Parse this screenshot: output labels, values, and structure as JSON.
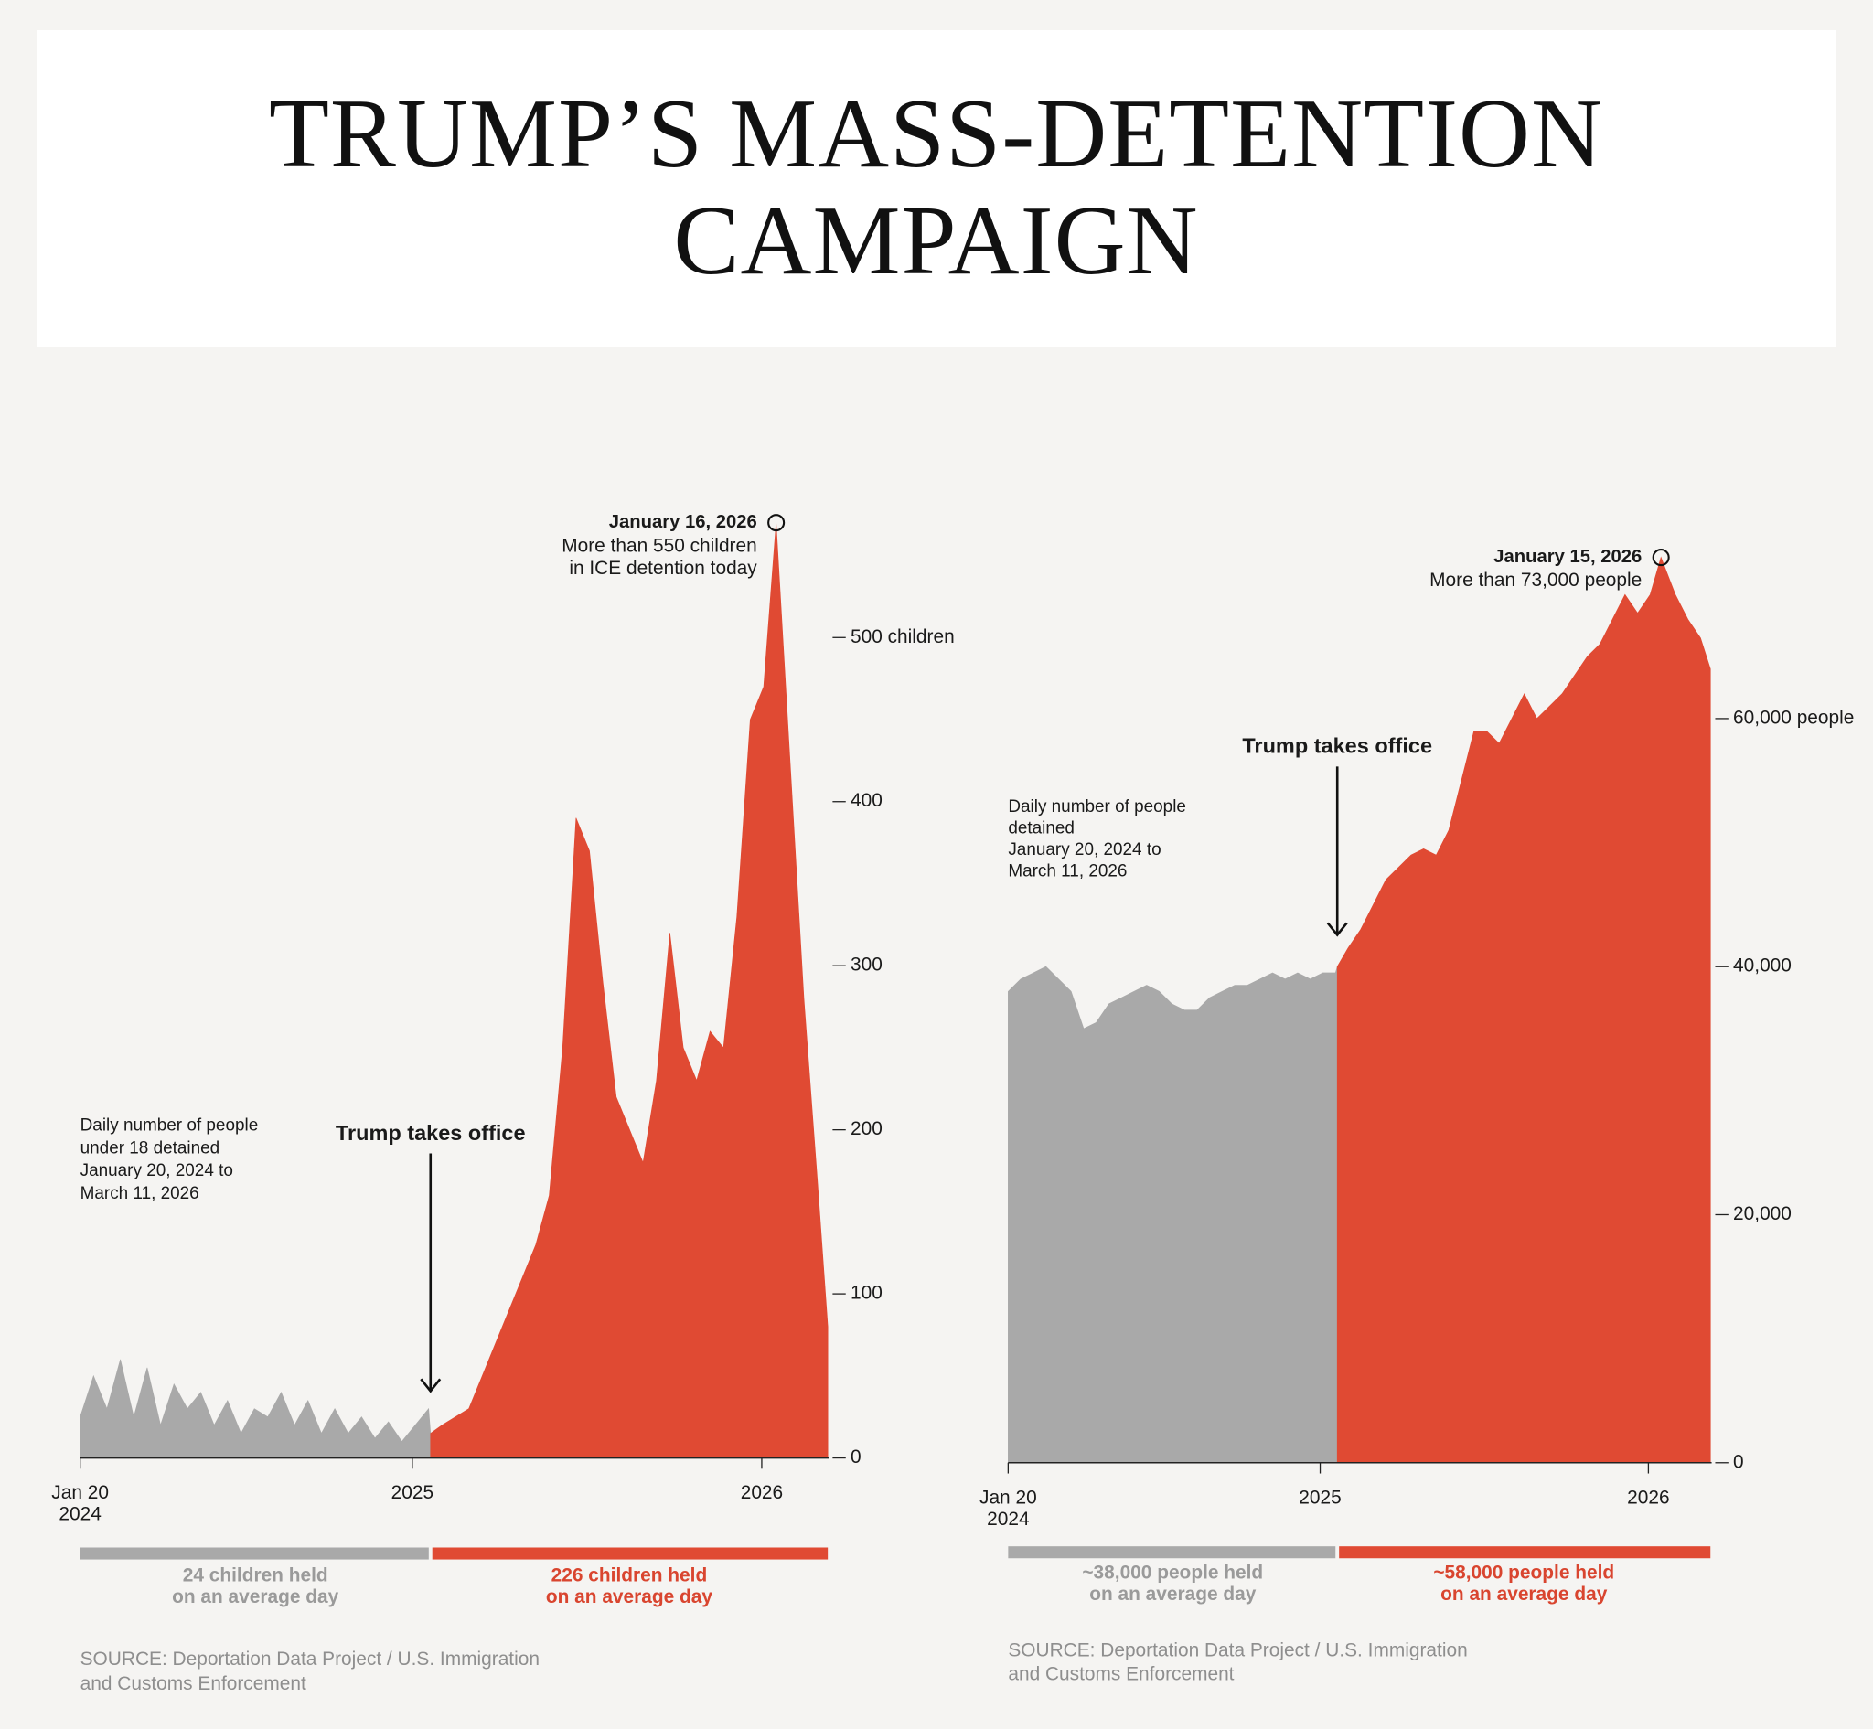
{
  "title": "TRUMP’S MASS-DETENTION CAMPAIGN",
  "chart_data": [
    {
      "type": "area",
      "notes": [
        "Daily number of people",
        "under 18 detained",
        "January 20, 2024 to",
        "March 11, 2026"
      ],
      "event_label": "Trump takes office",
      "event_date": "2025-01-20",
      "peak_annotation": {
        "date": "January 16, 2026",
        "lines": [
          "More than 550 children",
          "in ICE detention today"
        ]
      },
      "x": [
        "2024-01-20",
        "2024-02-03",
        "2024-02-17",
        "2024-03-02",
        "2024-03-16",
        "2024-03-30",
        "2024-04-13",
        "2024-04-27",
        "2024-05-11",
        "2024-05-25",
        "2024-06-08",
        "2024-06-22",
        "2024-07-06",
        "2024-07-20",
        "2024-08-03",
        "2024-08-17",
        "2024-08-31",
        "2024-09-14",
        "2024-09-28",
        "2024-10-12",
        "2024-10-26",
        "2024-11-09",
        "2024-11-23",
        "2024-12-07",
        "2024-12-21",
        "2025-01-04",
        "2025-01-18",
        "2025-01-20",
        "2025-02-01",
        "2025-02-15",
        "2025-03-01",
        "2025-03-15",
        "2025-03-29",
        "2025-04-12",
        "2025-04-26",
        "2025-05-10",
        "2025-05-24",
        "2025-06-07",
        "2025-06-21",
        "2025-07-05",
        "2025-07-19",
        "2025-08-02",
        "2025-08-16",
        "2025-08-30",
        "2025-09-13",
        "2025-09-27",
        "2025-10-11",
        "2025-10-25",
        "2025-11-08",
        "2025-11-22",
        "2025-12-06",
        "2025-12-20",
        "2026-01-03",
        "2026-01-16",
        "2026-01-31",
        "2026-02-14",
        "2026-02-28",
        "2026-03-11"
      ],
      "series": [
        {
          "color": "#a9a9a9",
          "values": [
            25,
            50,
            30,
            60,
            25,
            55,
            20,
            45,
            30,
            40,
            20,
            35,
            15,
            30,
            25,
            40,
            20,
            35,
            15,
            30,
            15,
            25,
            12,
            22,
            10,
            20,
            30,
            15,
            null,
            null,
            null,
            null,
            null,
            null,
            null,
            null,
            null,
            null,
            null,
            null,
            null,
            null,
            null,
            null,
            null,
            null,
            null,
            null,
            null,
            null,
            null,
            null,
            null,
            null,
            null,
            null,
            null,
            null
          ]
        },
        {
          "color": "#e04a33",
          "values": [
            null,
            null,
            null,
            null,
            null,
            null,
            null,
            null,
            null,
            null,
            null,
            null,
            null,
            null,
            null,
            null,
            null,
            null,
            null,
            null,
            null,
            null,
            null,
            null,
            null,
            null,
            null,
            15,
            20,
            25,
            30,
            50,
            70,
            90,
            110,
            130,
            160,
            250,
            390,
            370,
            290,
            220,
            200,
            180,
            230,
            320,
            250,
            230,
            260,
            250,
            330,
            450,
            470,
            570,
            420,
            280,
            170,
            80
          ]
        }
      ],
      "xlim": [
        "2024-01-20",
        "2026-03-11"
      ],
      "xticks": [
        {
          "value": "2024-01-20",
          "label": [
            "Jan 20",
            "2024"
          ]
        },
        {
          "value": "2025-01-01",
          "label": [
            "2025"
          ]
        },
        {
          "value": "2026-01-01",
          "label": [
            "2026"
          ]
        }
      ],
      "ylim": [
        0,
        580
      ],
      "yticks": [
        {
          "value": 500,
          "label": "500 children"
        },
        400,
        300,
        200,
        100,
        0
      ],
      "periods": [
        {
          "lines": [
            "24 children held",
            "on an average day"
          ]
        },
        {
          "lines": [
            "226 children held",
            "on an average day"
          ]
        }
      ],
      "source": [
        "SOURCE: Deportation Data Project / U.S. Immigration",
        "and Customs Enforcement"
      ]
    },
    {
      "type": "area",
      "notes": [
        "Daily number of people",
        "detained",
        "January 20, 2024 to",
        "March 11, 2026"
      ],
      "event_label": "Trump takes office",
      "event_date": "2025-01-20",
      "peak_annotation": {
        "date": "January 15, 2026",
        "lines": [
          "More than 73,000 people"
        ]
      },
      "x": [
        "2024-01-20",
        "2024-02-03",
        "2024-02-17",
        "2024-03-02",
        "2024-03-16",
        "2024-03-30",
        "2024-04-13",
        "2024-04-27",
        "2024-05-11",
        "2024-05-25",
        "2024-06-08",
        "2024-06-22",
        "2024-07-06",
        "2024-07-20",
        "2024-08-03",
        "2024-08-17",
        "2024-08-31",
        "2024-09-14",
        "2024-09-28",
        "2024-10-12",
        "2024-10-26",
        "2024-11-09",
        "2024-11-23",
        "2024-12-07",
        "2024-12-21",
        "2025-01-04",
        "2025-01-18",
        "2025-01-20",
        "2025-02-01",
        "2025-02-15",
        "2025-03-01",
        "2025-03-15",
        "2025-03-29",
        "2025-04-12",
        "2025-04-26",
        "2025-05-10",
        "2025-05-24",
        "2025-06-07",
        "2025-06-21",
        "2025-07-05",
        "2025-07-19",
        "2025-08-02",
        "2025-08-16",
        "2025-08-30",
        "2025-09-13",
        "2025-09-27",
        "2025-10-11",
        "2025-10-25",
        "2025-11-08",
        "2025-11-22",
        "2025-12-06",
        "2025-12-20",
        "2026-01-03",
        "2026-01-15",
        "2026-01-31",
        "2026-02-14",
        "2026-02-28",
        "2026-03-11"
      ],
      "series": [
        {
          "color": "#a9a9a9",
          "values": [
            38000,
            39000,
            39500,
            40000,
            39000,
            38000,
            35000,
            35500,
            37000,
            37500,
            38000,
            38500,
            38000,
            37000,
            36500,
            36500,
            37500,
            38000,
            38500,
            38500,
            39000,
            39500,
            39000,
            39500,
            39000,
            39500,
            39500,
            40000,
            null,
            null,
            null,
            null,
            null,
            null,
            null,
            null,
            null,
            null,
            null,
            null,
            null,
            null,
            null,
            null,
            null,
            null,
            null,
            null,
            null,
            null,
            null,
            null,
            null,
            null,
            null,
            null,
            null,
            null
          ]
        },
        {
          "color": "#e04a33",
          "values": [
            null,
            null,
            null,
            null,
            null,
            null,
            null,
            null,
            null,
            null,
            null,
            null,
            null,
            null,
            null,
            null,
            null,
            null,
            null,
            null,
            null,
            null,
            null,
            null,
            null,
            null,
            null,
            40000,
            41500,
            43000,
            45000,
            47000,
            48000,
            49000,
            49500,
            49000,
            51000,
            55000,
            59000,
            59000,
            58000,
            60000,
            62000,
            60000,
            61000,
            62000,
            63500,
            65000,
            66000,
            68000,
            70000,
            68500,
            70000,
            73000,
            70000,
            68000,
            66500,
            64000
          ]
        }
      ],
      "xlim": [
        "2024-01-20",
        "2026-03-11"
      ],
      "xticks": [
        {
          "value": "2024-01-20",
          "label": [
            "Jan 20",
            "2024"
          ]
        },
        {
          "value": "2025-01-01",
          "label": [
            "2025"
          ]
        },
        {
          "value": "2026-01-01",
          "label": [
            "2026"
          ]
        }
      ],
      "ylim": [
        0,
        75000
      ],
      "yticks": [
        {
          "value": 60000,
          "label": "60,000 people"
        },
        {
          "value": 40000,
          "label": "40,000"
        },
        {
          "value": 20000,
          "label": "20,000"
        },
        0
      ],
      "periods": [
        {
          "lines": [
            "~38,000 people held",
            "on an average day"
          ]
        },
        {
          "lines": [
            "~58,000 people held",
            "on an average day"
          ]
        }
      ],
      "source": [
        "SOURCE: Deportation Data Project / U.S. Immigration",
        "and Customs Enforcement"
      ]
    }
  ]
}
